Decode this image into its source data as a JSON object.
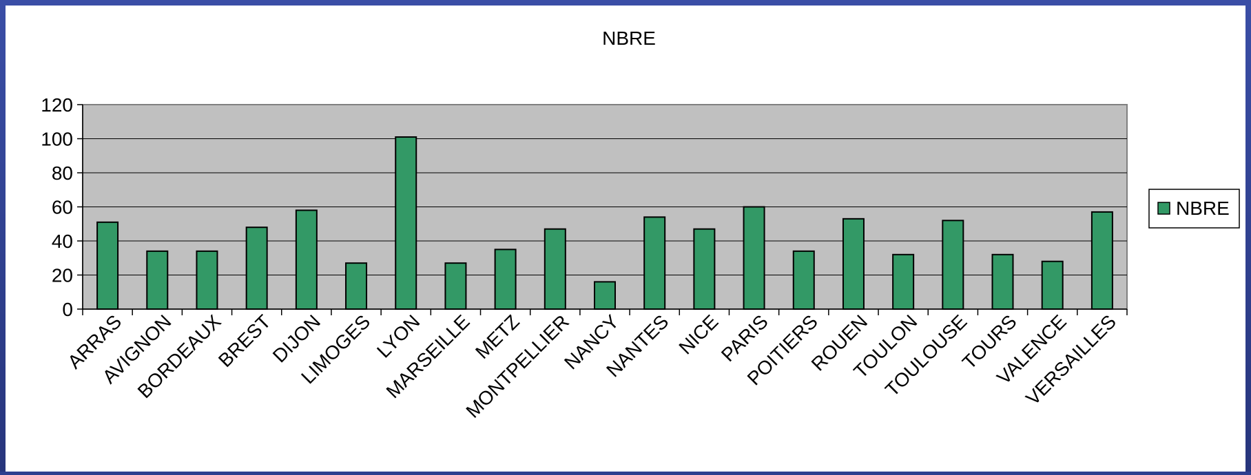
{
  "chart_data": {
    "type": "bar",
    "title": "NBRE",
    "xlabel": "",
    "ylabel": "",
    "ylim": [
      0,
      120
    ],
    "yticks": [
      0,
      20,
      40,
      60,
      80,
      100,
      120
    ],
    "grid": true,
    "legend_position": "right",
    "categories": [
      "ARRAS",
      "AVIGNON",
      "BORDEAUX",
      "BREST",
      "DIJON",
      "LIMOGES",
      "LYON",
      "MARSEILLE",
      "METZ",
      "MONTPELLIER",
      "NANCY",
      "NANTES",
      "NICE",
      "PARIS",
      "POITIERS",
      "ROUEN",
      "TOULON",
      "TOULOUSE",
      "TOURS",
      "VALENCE",
      "VERSAILLES"
    ],
    "series": [
      {
        "name": "NBRE",
        "color": "#339966",
        "values": [
          51,
          34,
          34,
          48,
          58,
          27,
          101,
          27,
          35,
          47,
          16,
          54,
          47,
          60,
          34,
          53,
          32,
          52,
          32,
          28,
          57
        ]
      }
    ],
    "plot_background": "#c0c0c0"
  }
}
